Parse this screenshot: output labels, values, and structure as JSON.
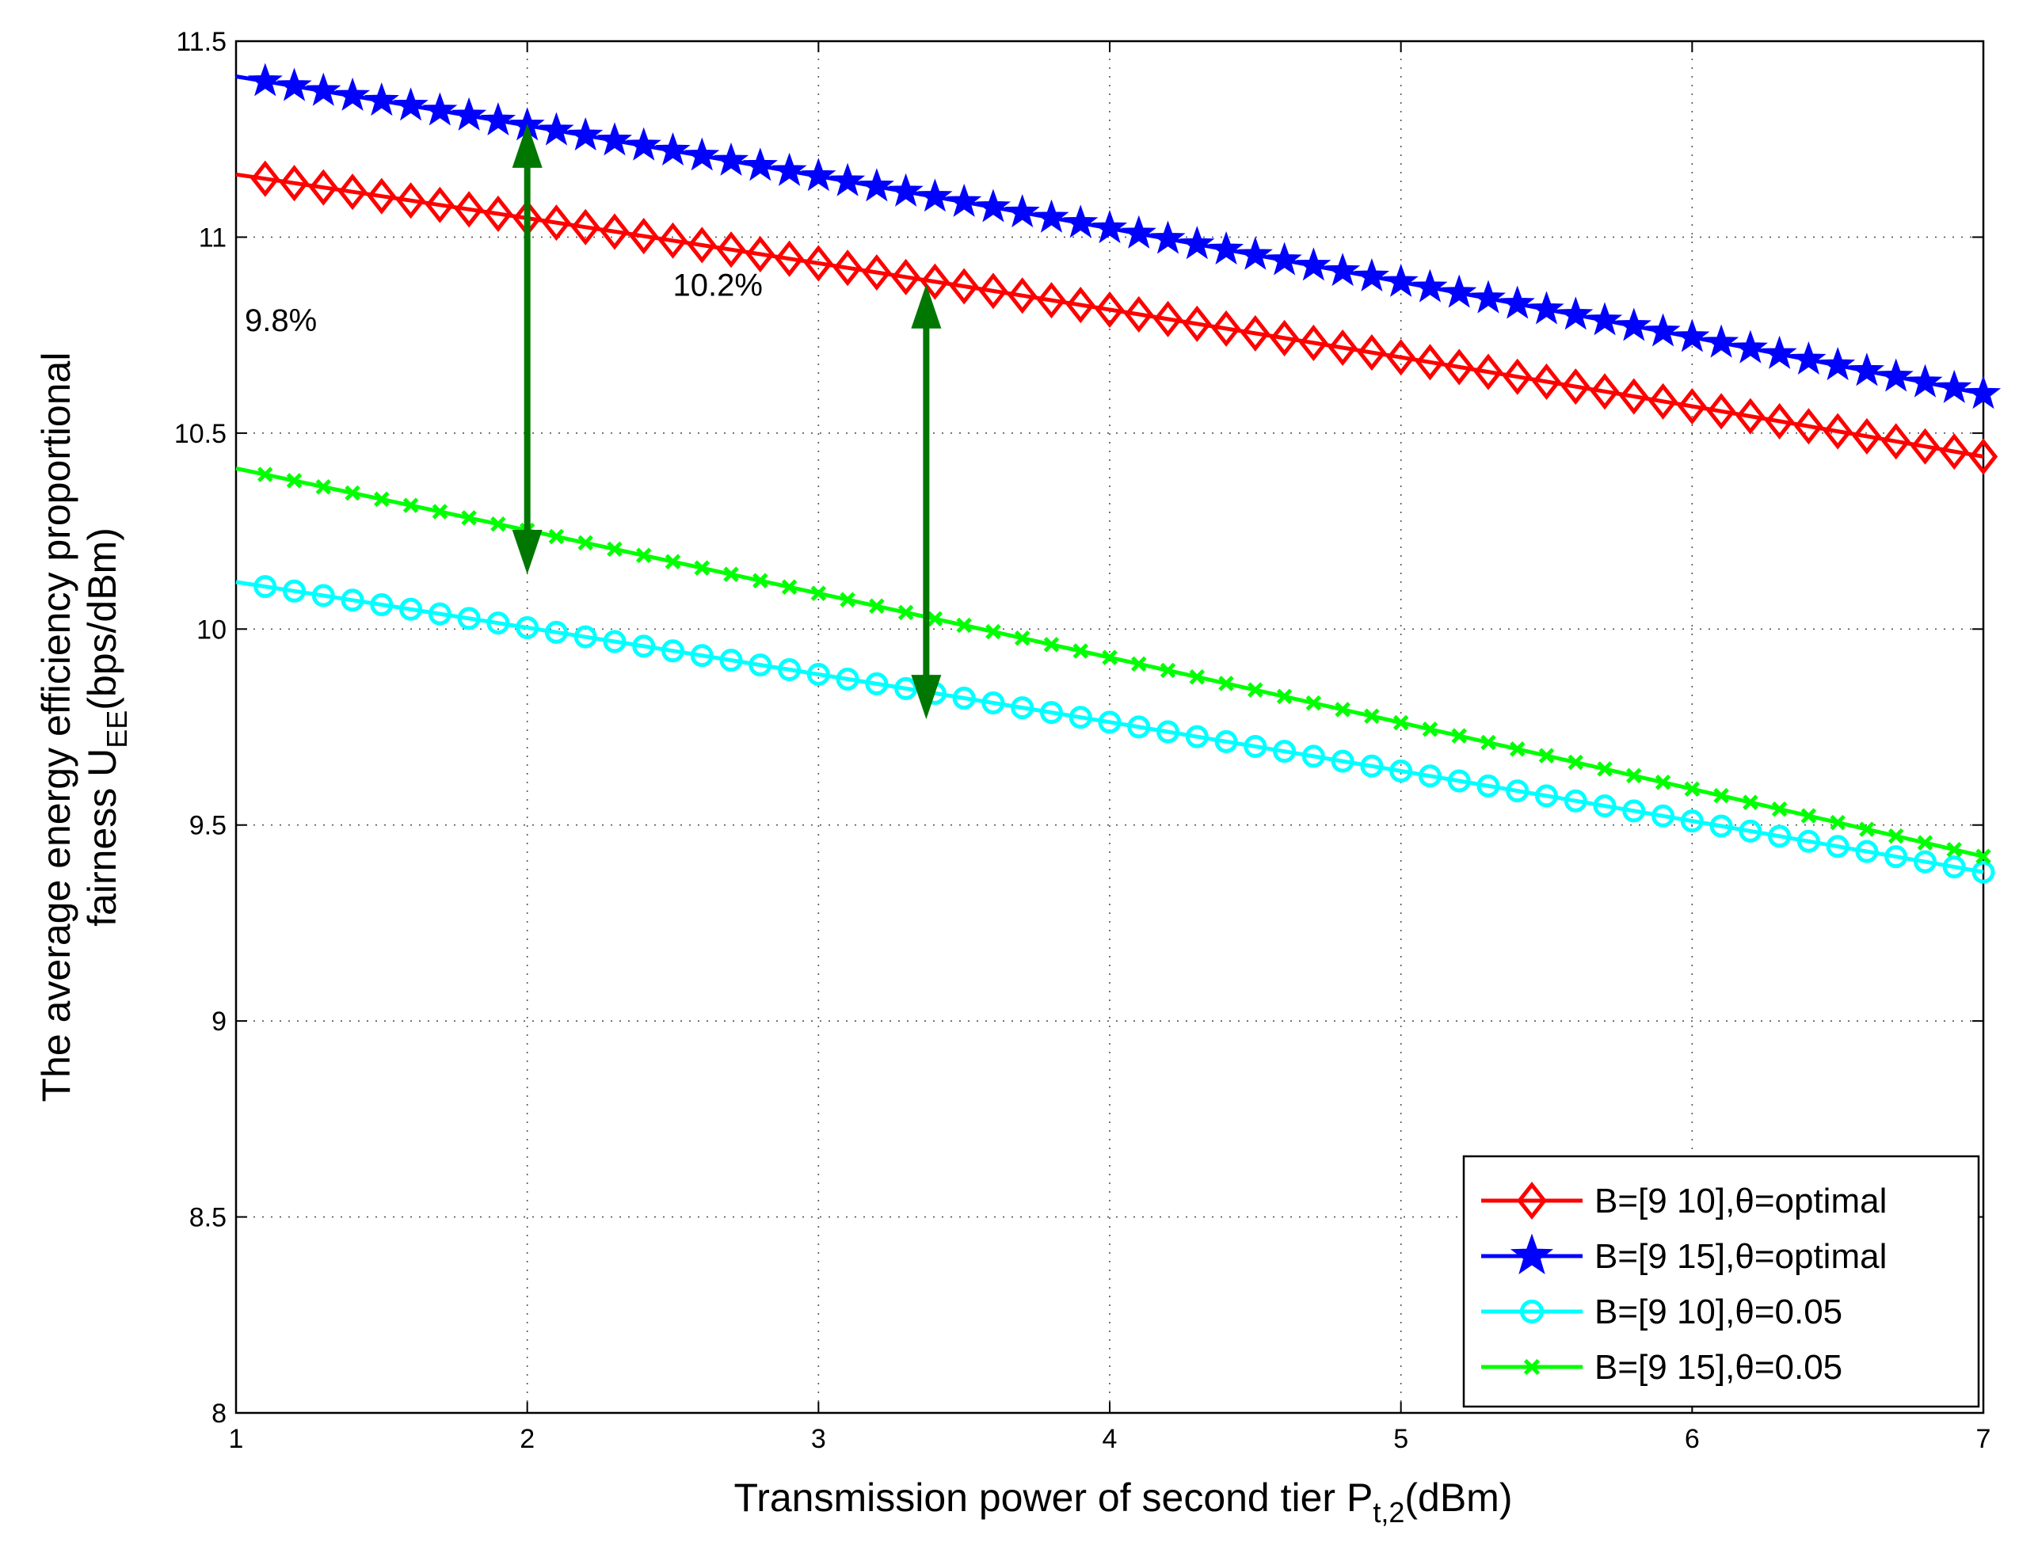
{
  "chart_data": {
    "type": "line",
    "title": "",
    "xlabel": "Transmission power of second tier P",
    "xlabel_sub": "t,2",
    "xlabel_suffix": "(dBm)",
    "ylabel_line1": "The average energy efficiency proportional",
    "ylabel_line2_prefix": "fairness U",
    "ylabel_line2_sub": "EE",
    "ylabel_line2_suffix": "(bps/dBm)",
    "xlim": [
      1,
      7
    ],
    "ylim": [
      8,
      11.5
    ],
    "xticks": [
      "1",
      "2",
      "3",
      "4",
      "5",
      "6",
      "7"
    ],
    "yticks": [
      "8",
      "8.5",
      "9",
      "9.5",
      "10",
      "10.5",
      "11",
      "11.5"
    ],
    "grid": true,
    "legend_position": "bottom-right",
    "x_step": 0.1,
    "series": [
      {
        "name": "B=[9   10],θ=optimal",
        "color": "#ff0000",
        "marker": "diamond",
        "start": 11.16,
        "end": 10.44,
        "curvature": 0.06,
        "marker_from": 1.1
      },
      {
        "name": "B=[9   15],θ=optimal",
        "color": "#0000ff",
        "marker": "star",
        "start": 11.41,
        "end": 10.6,
        "curvature": 0.07,
        "marker_from": 1.1
      },
      {
        "name": "B=[9   10],θ=0.05",
        "color": "#00ffff",
        "marker": "circle",
        "start": 10.12,
        "end": 9.38,
        "curvature": 0.05,
        "marker_from": 1.1
      },
      {
        "name": "B=[9   15],θ=0.05",
        "color": "#00ff00",
        "marker": "x",
        "start": 10.41,
        "end": 9.42,
        "curvature": 0.05,
        "marker_from": 1.1
      }
    ],
    "annotations": [
      {
        "text": "9.8%",
        "x": 1.03,
        "y": 10.76
      },
      {
        "text": "10.2%",
        "x": 2.5,
        "y": 10.85
      }
    ],
    "arrows": [
      {
        "x": 2.0,
        "y_top": 11.29,
        "y_bottom": 10.14,
        "color": "#007700"
      },
      {
        "x": 3.37,
        "y_top": 10.88,
        "y_bottom": 9.77,
        "color": "#007700"
      }
    ]
  }
}
